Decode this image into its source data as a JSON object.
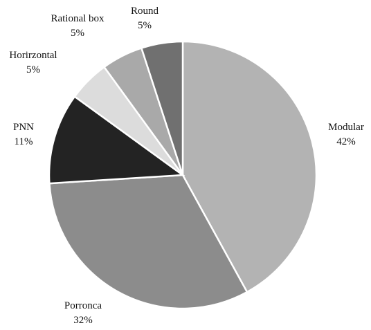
{
  "chart_data": {
    "type": "pie",
    "categories": [
      "Modular",
      "Porronca",
      "PNN",
      "Horirzontal",
      "Rational box",
      "Round"
    ],
    "values": [
      42,
      32,
      11,
      5,
      5,
      5
    ],
    "value_labels": [
      "42%",
      "32%",
      "11%",
      "5%",
      "5%",
      "5%"
    ],
    "colors": [
      "#b3b3b3",
      "#8c8c8c",
      "#232323",
      "#dcdcdc",
      "#a9a9a9",
      "#707070"
    ]
  }
}
